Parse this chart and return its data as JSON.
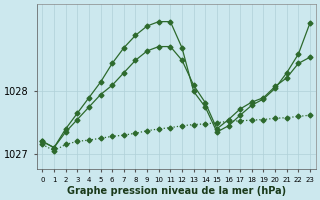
{
  "xlabel": "Graphe pression niveau de la mer (hPa)",
  "bg_color": "#cce8ee",
  "grid_color": "#b0d0d8",
  "line_color": "#2d6a2d",
  "x": [
    0,
    1,
    2,
    3,
    4,
    5,
    6,
    7,
    8,
    9,
    10,
    11,
    12,
    13,
    14,
    15,
    16,
    17,
    18,
    19,
    20,
    21,
    22,
    23
  ],
  "series1": [
    1027.15,
    1027.05,
    1027.15,
    1027.2,
    1027.22,
    1027.25,
    1027.28,
    1027.3,
    1027.33,
    1027.37,
    1027.4,
    1027.42,
    1027.45,
    1027.47,
    1027.48,
    1027.5,
    1027.52,
    1027.53,
    1027.54,
    1027.55,
    1027.57,
    1027.58,
    1027.6,
    1027.62
  ],
  "series2": [
    1027.2,
    1027.1,
    1027.4,
    1027.65,
    1027.9,
    1028.15,
    1028.45,
    1028.7,
    1028.9,
    1029.05,
    1029.12,
    1029.12,
    1028.7,
    1028.0,
    1027.75,
    1027.35,
    1027.45,
    1027.62,
    1027.78,
    1027.88,
    1028.05,
    1028.3,
    1028.6,
    1029.1
  ],
  "series3": [
    1027.2,
    1027.1,
    1027.35,
    1027.55,
    1027.75,
    1027.95,
    1028.1,
    1028.3,
    1028.5,
    1028.65,
    1028.72,
    1028.72,
    1028.5,
    1028.1,
    1027.82,
    1027.4,
    1027.55,
    1027.72,
    1027.83,
    1027.9,
    1028.08,
    1028.22,
    1028.45,
    1028.55
  ],
  "series1_style": "dotted",
  "series2_style": "solid",
  "series3_style": "solid",
  "ylim": [
    1026.75,
    1029.4
  ],
  "yticks": [
    1027,
    1028
  ],
  "ytick_fontsize": 7,
  "xtick_fontsize": 5,
  "xlabel_fontsize": 7,
  "figsize": [
    3.2,
    2.0
  ],
  "dpi": 100
}
